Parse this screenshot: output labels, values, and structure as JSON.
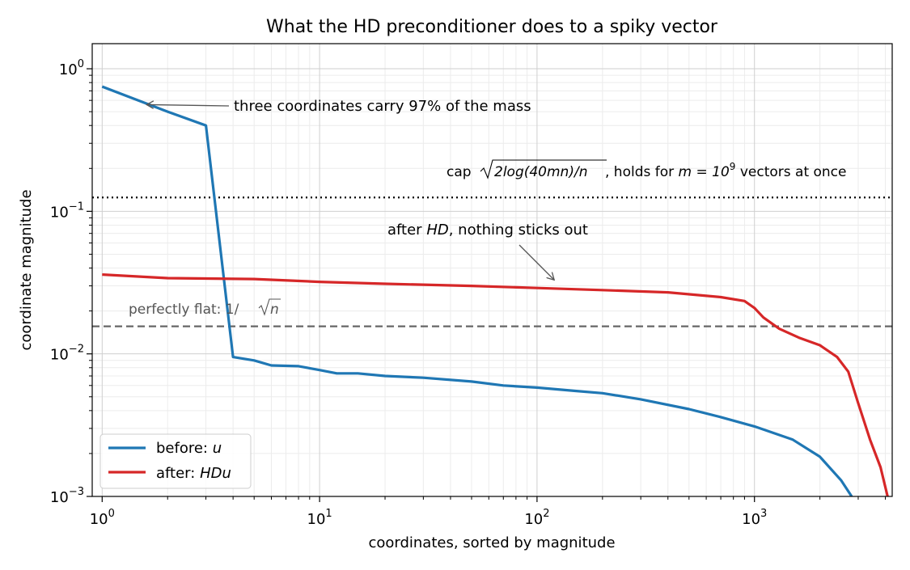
{
  "chart_data": {
    "type": "line",
    "title": "What the HD preconditioner does to a spiky vector",
    "xlabel": "coordinates, sorted by magnitude",
    "ylabel": "coordinate magnitude",
    "xscale": "log",
    "yscale": "log",
    "xlim": [
      0.9,
      4300
    ],
    "ylim": [
      0.001,
      1.5
    ],
    "grid": true,
    "legend_position": "lower-left",
    "x_tick_labels": [
      {
        "value": 1,
        "base": "10",
        "exp": "0"
      },
      {
        "value": 10,
        "base": "10",
        "exp": "1"
      },
      {
        "value": 100,
        "base": "10",
        "exp": "2"
      },
      {
        "value": 1000,
        "base": "10",
        "exp": "3"
      }
    ],
    "y_tick_labels": [
      {
        "value": 1,
        "base": "10",
        "exp": "0"
      },
      {
        "value": 0.1,
        "base": "10",
        "exp": "−1"
      },
      {
        "value": 0.01,
        "base": "10",
        "exp": "−2"
      },
      {
        "value": 0.001,
        "base": "10",
        "exp": "−3"
      }
    ],
    "series": [
      {
        "name": "before: u",
        "color": "#1f77b4",
        "points": [
          [
            1,
            0.75
          ],
          [
            2,
            0.5
          ],
          [
            3,
            0.4
          ],
          [
            4,
            0.0095
          ],
          [
            5,
            0.009
          ],
          [
            6,
            0.0083
          ],
          [
            8,
            0.0082
          ],
          [
            10,
            0.0077
          ],
          [
            12,
            0.0073
          ],
          [
            15,
            0.0073
          ],
          [
            20,
            0.007
          ],
          [
            30,
            0.0068
          ],
          [
            50,
            0.0064
          ],
          [
            70,
            0.006
          ],
          [
            100,
            0.0058
          ],
          [
            150,
            0.0055
          ],
          [
            200,
            0.0053
          ],
          [
            300,
            0.0048
          ],
          [
            500,
            0.0041
          ],
          [
            700,
            0.0036
          ],
          [
            1000,
            0.0031
          ],
          [
            1500,
            0.0025
          ],
          [
            2000,
            0.0019
          ],
          [
            2500,
            0.0013
          ],
          [
            2800,
            0.001
          ]
        ]
      },
      {
        "name": "after: HDu",
        "color": "#d62728",
        "points": [
          [
            1,
            0.036
          ],
          [
            2,
            0.034
          ],
          [
            5,
            0.0335
          ],
          [
            10,
            0.032
          ],
          [
            20,
            0.031
          ],
          [
            50,
            0.03
          ],
          [
            100,
            0.029
          ],
          [
            200,
            0.028
          ],
          [
            400,
            0.027
          ],
          [
            700,
            0.025
          ],
          [
            900,
            0.0235
          ],
          [
            1000,
            0.021
          ],
          [
            1100,
            0.018
          ],
          [
            1300,
            0.015
          ],
          [
            1600,
            0.013
          ],
          [
            2000,
            0.0115
          ],
          [
            2400,
            0.0095
          ],
          [
            2700,
            0.0075
          ],
          [
            3000,
            0.0045
          ],
          [
            3400,
            0.0025
          ],
          [
            3800,
            0.0016
          ],
          [
            4096,
            0.001
          ]
        ]
      }
    ],
    "reference_lines": [
      {
        "y": 0.125,
        "style": "dotted",
        "color": "#000000"
      },
      {
        "y": 0.0156,
        "style": "dashed",
        "color": "#666666"
      }
    ],
    "annotations": {
      "spike": {
        "text": "three coordinates carry 97% of the mass",
        "target": [
          1.6,
          0.56
        ]
      },
      "after": {
        "prefix": "after ",
        "italic": "HD",
        "suffix": ", nothing sticks out",
        "target": [
          120,
          0.033
        ]
      },
      "cap": {
        "prefix": "cap ",
        "sqrt_inner": "2log(40mn)/n",
        "middle": ", holds for ",
        "m_eq": "m = 10",
        "m_exp": "9",
        "suffix": " vectors at once"
      },
      "flat": {
        "prefix": "perfectly flat: 1/",
        "sqrt_inner": "n"
      }
    },
    "legend": [
      {
        "prefix": "before: ",
        "italic": "u"
      },
      {
        "prefix": "after: ",
        "italic": "HDu"
      }
    ]
  }
}
